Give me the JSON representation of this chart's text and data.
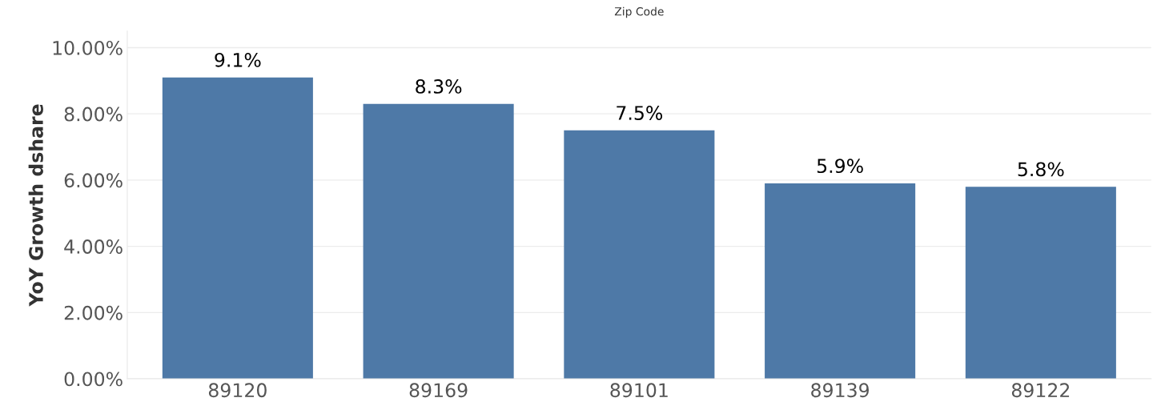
{
  "chart_data": {
    "type": "bar",
    "title": "Zip Code",
    "ylabel": "YoY Growth dshare",
    "categories": [
      "89120",
      "89169",
      "89101",
      "89139",
      "89122"
    ],
    "values": [
      9.1,
      8.3,
      7.5,
      5.9,
      5.8
    ],
    "value_labels": [
      "9.1%",
      "8.3%",
      "7.5%",
      "5.9%",
      "5.8%"
    ],
    "color": "#4e79a7",
    "ylim": [
      0,
      10.5
    ],
    "yticks": [
      {
        "value": 0,
        "label": "0.00%"
      },
      {
        "value": 2,
        "label": "2.00%"
      },
      {
        "value": 4,
        "label": "4.00%"
      },
      {
        "value": 6,
        "label": "6.00%"
      },
      {
        "value": 8,
        "label": "8.00%"
      },
      {
        "value": 10,
        "label": "10.00%"
      }
    ],
    "grid": "y",
    "legend": false
  }
}
